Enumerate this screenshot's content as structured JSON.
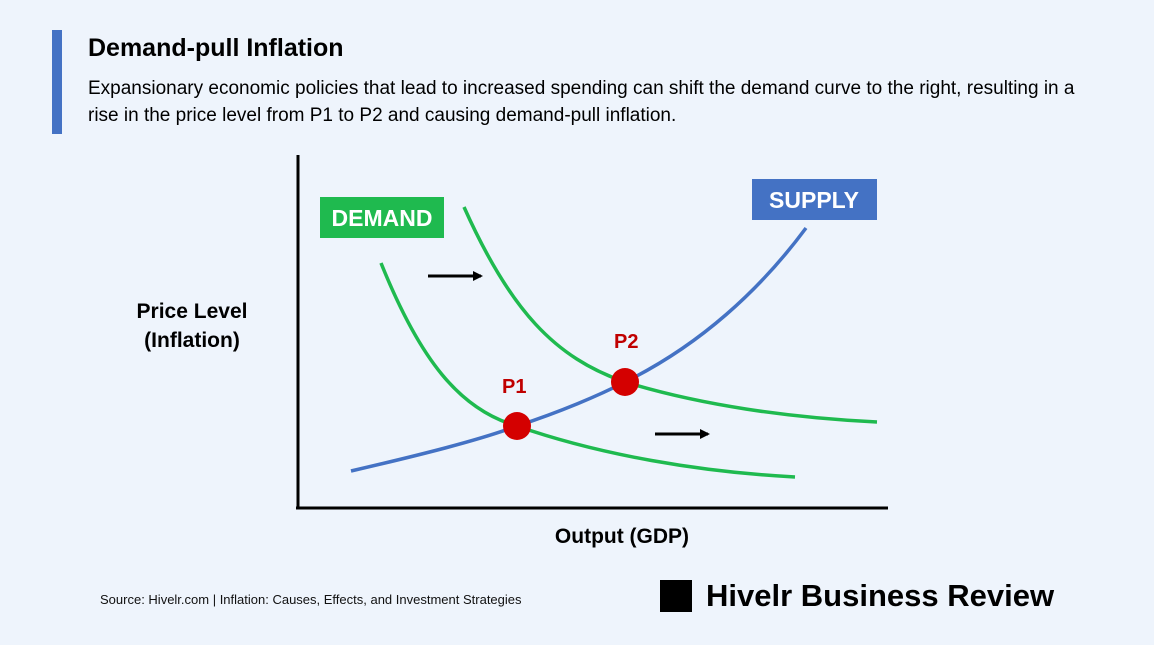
{
  "header": {
    "title": "Demand-pull Inflation",
    "subtitle": "Expansionary economic policies that lead to increased spending can shift the demand curve to the right, resulting in a rise in the price level from P1 to P2 and causing demand-pull inflation."
  },
  "diagram": {
    "y_axis_label_line1": "Price Level",
    "y_axis_label_line2": "(Inflation)",
    "x_axis_label": "Output (GDP)",
    "demand_tag": "DEMAND",
    "supply_tag": "SUPPLY",
    "point_1": "P1",
    "point_2": "P2",
    "colors": {
      "demand": "#1fba4f",
      "supply": "#4472c4",
      "equilibrium": "#d40000",
      "point_label": "#c00000"
    }
  },
  "footer": {
    "source": "Source: Hivelr.com | Inflation: Causes, Effects, and Investment Strategies",
    "brand": "Hivelr Business Review"
  }
}
